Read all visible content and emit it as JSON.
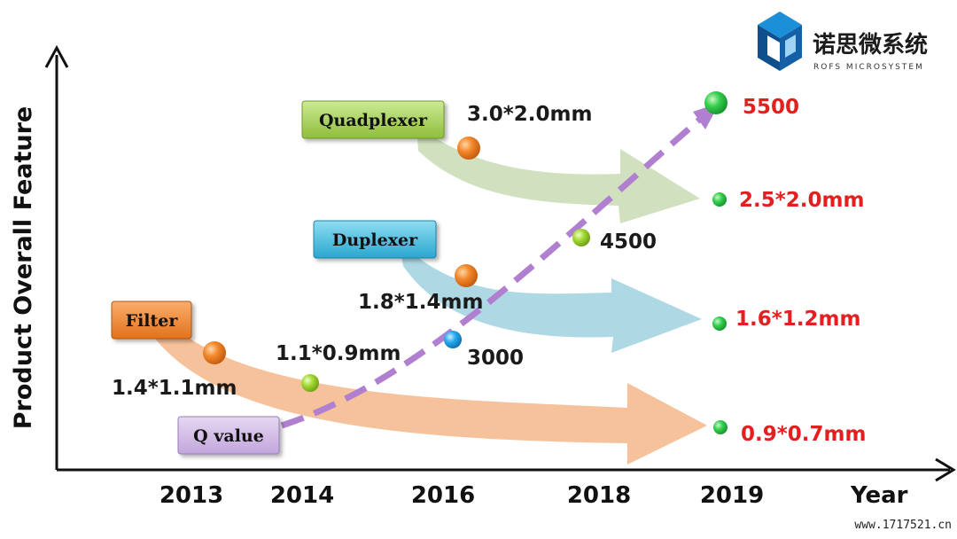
{
  "logo": {
    "name_cn": "诺思微系统",
    "name_en": "ROFS MICROSYSTEM"
  },
  "axes": {
    "y_title": "Product Overall Feature",
    "x_title": "Year",
    "years": [
      "2013",
      "2014",
      "2016",
      "2018",
      "2019"
    ]
  },
  "categories": {
    "quadplexer": "Quadplexer",
    "duplexer": "Duplexer",
    "filter": "Filter",
    "q_value": "Q value"
  },
  "points": {
    "quad_start": "3.0*2.0mm",
    "quad_end": "2.5*2.0mm",
    "dup_start": "1.8*1.4mm",
    "dup_end": "1.6*1.2mm",
    "filter_start": "1.4*1.1mm",
    "filter_mid": "1.1*0.9mm",
    "filter_end": "0.9*0.7mm",
    "q_3000": "3000",
    "q_4500": "4500",
    "q_5500": "5500"
  },
  "watermark": "www.1717521.cn",
  "colors": {
    "quad_arrow": "#cfdfbd",
    "dup_arrow": "#a9d6e3",
    "filter_arrow": "#f6bf96",
    "q_line": "#b07fd0",
    "red_label": "#e32020",
    "orange_dot": "#ef7c1f",
    "green_dot": "#2ec84a",
    "lime_dot": "#97d52a",
    "blue_dot": "#1d9fe6"
  }
}
